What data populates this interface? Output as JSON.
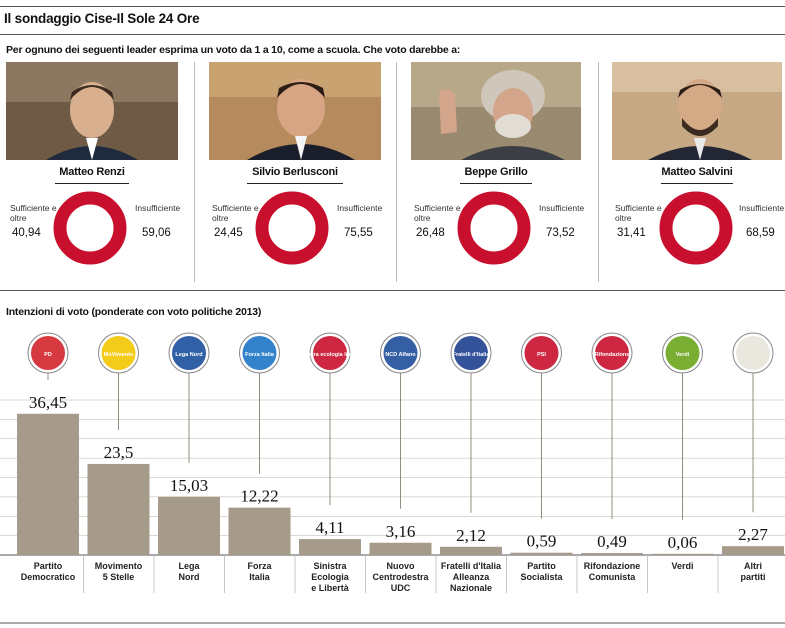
{
  "header": {
    "title": "Il sondaggio Cise-Il Sole 24 Ore",
    "question": "Per ognuno dei seguenti leader esprima un voto da 1 a 10, come a scuola. Che voto darebbe a:"
  },
  "leaders": [
    {
      "name": "Matteo Renzi",
      "sufficient_label": "Sufficiente e oltre",
      "sufficient": "40,94",
      "insufficient_label": "Insufficiente",
      "insufficient": "59,06"
    },
    {
      "name": "Silvio Berlusconi",
      "sufficient_label": "Sufficiente e oltre",
      "sufficient": "24,45",
      "insufficient_label": "Insufficiente",
      "insufficient": "75,55"
    },
    {
      "name": "Beppe Grillo",
      "sufficient_label": "Sufficiente e oltre",
      "sufficient": "26,48",
      "insufficient_label": "Insufficiente",
      "insufficient": "73,52"
    },
    {
      "name": "Matteo Salvini",
      "sufficient_label": "Sufficiente e oltre",
      "sufficient": "31,41",
      "insufficient_label": "Insufficiente",
      "insufficient": "68,59"
    }
  ],
  "colors": {
    "insufficient": "#c8102e",
    "sufficient": "#9aaab9",
    "bar": "#a69a8a",
    "grid": "#b9b0a4"
  },
  "chart_data": [
    {
      "type": "pie",
      "title": "Matteo Renzi",
      "categories": [
        "Sufficiente e oltre",
        "Insufficiente"
      ],
      "values": [
        40.94,
        59.06
      ]
    },
    {
      "type": "pie",
      "title": "Silvio Berlusconi",
      "categories": [
        "Sufficiente e oltre",
        "Insufficiente"
      ],
      "values": [
        24.45,
        75.55
      ]
    },
    {
      "type": "pie",
      "title": "Beppe Grillo",
      "categories": [
        "Sufficiente e oltre",
        "Insufficiente"
      ],
      "values": [
        26.48,
        73.52
      ]
    },
    {
      "type": "pie",
      "title": "Matteo Salvini",
      "categories": [
        "Sufficiente e oltre",
        "Insufficiente"
      ],
      "values": [
        31.41,
        68.59
      ]
    },
    {
      "type": "bar",
      "title": "Intenzioni di voto (ponderate con voto politiche 2013)",
      "ylim": [
        0,
        40
      ],
      "grid": true,
      "categories": [
        "Partito Democratico",
        "Movimento 5 Stelle",
        "Lega Nord",
        "Forza Italia",
        "Sinistra Ecologia e Libertà",
        "Nuovo Centrodestra UDC",
        "Fratelli d'Italia Alleanza Nazionale",
        "Partito Socialista",
        "Rifondazione Comunista",
        "Verdi",
        "Altri partiti"
      ],
      "values": [
        36.45,
        23.5,
        15.03,
        12.22,
        4.11,
        3.16,
        2.12,
        0.59,
        0.49,
        0.06,
        2.27
      ],
      "value_labels": [
        "36,45",
        "23,5",
        "15,03",
        "12,22",
        "4,11",
        "3,16",
        "2,12",
        "0,59",
        "0,49",
        "0,06",
        "2,27"
      ],
      "label_lines": [
        [
          "Partito",
          "Democratico"
        ],
        [
          "Movimento",
          "5 Stelle"
        ],
        [
          "Lega",
          "Nord"
        ],
        [
          "Forza",
          "Italia"
        ],
        [
          "Sinistra",
          "Ecologia",
          "e Libertà"
        ],
        [
          "Nuovo",
          "Centrodestra",
          "UDC"
        ],
        [
          "Fratelli d'Italia",
          "Alleanza",
          "Nazionale"
        ],
        [
          "Partito",
          "Socialista"
        ],
        [
          "Rifondazione",
          "Comunista"
        ],
        [
          "Verdi"
        ],
        [
          "Altri",
          "partiti"
        ]
      ],
      "logo_text": [
        "PD",
        "MoVimento",
        "Lega Nord",
        "Forza Italia",
        "sinistra ecologia libertà",
        "NCD Alfano",
        "Fratelli d'Italia",
        "PSI",
        "Rifondazione",
        "Verdi",
        ""
      ],
      "logo_colors": [
        "#d2232a",
        "#f2c500",
        "#1c4f9c",
        "#1c74c7",
        "#c8102e",
        "#1f4e9a",
        "#1d3f8f",
        "#c8102e",
        "#c8102e",
        "#6aa51d",
        "#e8e4dc"
      ]
    }
  ]
}
